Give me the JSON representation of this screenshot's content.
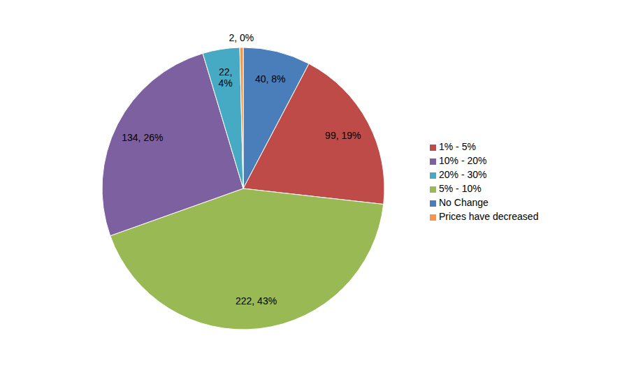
{
  "chart_data": {
    "type": "pie",
    "categories": [
      "No Change",
      "1% - 5%",
      "5% - 10%",
      "10% - 20%",
      "20% - 30%",
      "Prices have decreased"
    ],
    "values": [
      40,
      99,
      222,
      134,
      22,
      2
    ],
    "value_labels": [
      "40, 8%",
      "99, 19%",
      "222, 43%",
      "134, 26%",
      "22, 4%",
      "2, 0%"
    ],
    "colors": [
      "#4a7ebb",
      "#be4b48",
      "#98b954",
      "#7d60a0",
      "#46aac5",
      "#f79646"
    ],
    "data_labels": true,
    "legend": "right"
  }
}
